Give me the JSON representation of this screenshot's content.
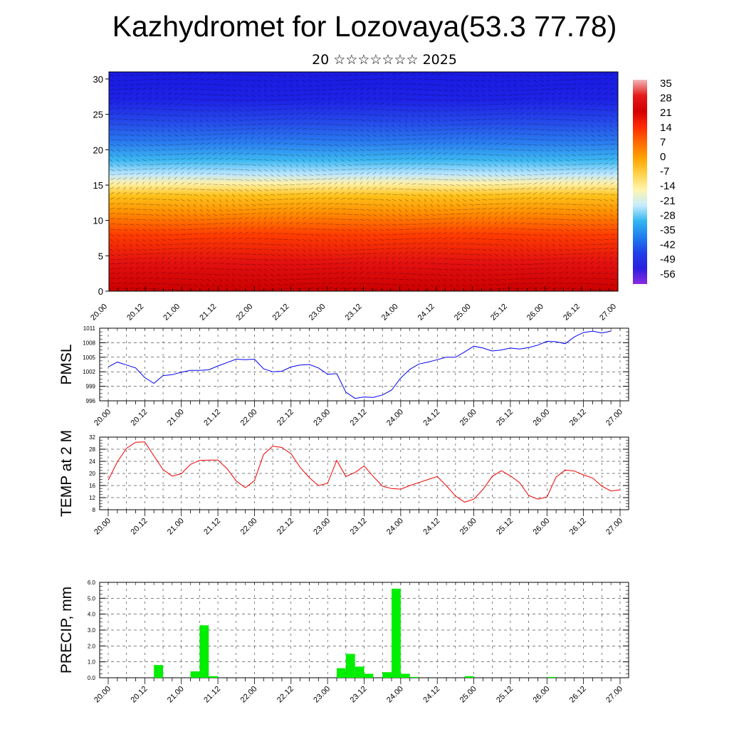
{
  "title": "Kazhydromet for Lozovaya(53.3 77.78)",
  "subtitle": "20 ☆☆☆☆☆☆☆ 2025",
  "colors": {
    "pmsl": "#0000ee",
    "temp": "#ee0000",
    "precip": "#00ee00"
  },
  "chart_data": [
    {
      "type": "heatmap",
      "y_ticks": [
        0,
        5,
        10,
        15,
        20,
        25,
        30
      ],
      "ylim": [
        0,
        31
      ],
      "x_ticks": [
        "20.00",
        "20.12",
        "21.00",
        "21.12",
        "22.00",
        "22.12",
        "23.00",
        "23.12",
        "24.00",
        "24.12",
        "25.00",
        "25.12",
        "26.00",
        "26.12",
        "27.00"
      ],
      "colorbar_labels": [
        "35",
        "28",
        "21",
        "14",
        "7",
        "0",
        "-7",
        "-14",
        "-21",
        "-28",
        "-35",
        "-42",
        "-49",
        "-56"
      ],
      "colorbar_colors": [
        "#f2b8b8",
        "#e41a1a",
        "#d40000",
        "#ff2a00",
        "#ff6a00",
        "#ffa400",
        "#ffd24a",
        "#fff5b0",
        "#c6ecff",
        "#33b4f0",
        "#1f7ef0",
        "#2040e8",
        "#2a1ee0",
        "#8a2be2"
      ],
      "vertical_color_profile": [
        {
          "level": 0,
          "color": "#cc0000"
        },
        {
          "level": 4,
          "color": "#e31010"
        },
        {
          "level": 8,
          "color": "#ff3c00"
        },
        {
          "level": 11,
          "color": "#ff8c00"
        },
        {
          "level": 13.5,
          "color": "#ffc21a"
        },
        {
          "level": 15.2,
          "color": "#fff1a6"
        },
        {
          "level": 16.5,
          "color": "#bfe8ff"
        },
        {
          "level": 18.5,
          "color": "#3cb8f2"
        },
        {
          "level": 21,
          "color": "#2a7cf0"
        },
        {
          "level": 24,
          "color": "#2548ea"
        },
        {
          "level": 27,
          "color": "#1e22e6"
        },
        {
          "level": 31,
          "color": "#1a1ae2"
        }
      ]
    },
    {
      "type": "line",
      "ylabel": "PMSL",
      "yticks": [
        996,
        999,
        1002,
        1005,
        1008,
        1011
      ],
      "ylim": [
        996,
        1011
      ],
      "x_ticks": [
        "20.00",
        "20.12",
        "21.00",
        "21.12",
        "22.00",
        "22.12",
        "23.00",
        "23.12",
        "24.00",
        "24.12",
        "25.00",
        "25.12",
        "26.00",
        "26.12",
        "27.00"
      ],
      "series": [
        {
          "x": [
            0,
            1,
            2,
            3,
            4,
            5,
            6,
            7,
            8,
            9,
            10,
            11,
            12,
            13,
            14,
            15,
            16,
            17,
            18,
            19,
            20,
            21,
            22,
            23,
            24,
            25,
            26,
            27,
            28,
            29,
            30,
            31,
            32,
            33,
            34,
            35,
            36,
            37,
            38,
            39,
            40,
            41,
            42,
            43,
            44,
            45,
            46,
            47,
            48,
            49,
            50,
            51,
            52,
            53,
            54,
            55,
            56
          ],
          "values": [
            1003.0,
            1004.0,
            1003.4,
            1002.8,
            1000.8,
            999.6,
            1001.2,
            1001.4,
            1001.9,
            1002.3,
            1002.3,
            1002.4,
            1003.2,
            1003.9,
            1004.6,
            1004.5,
            1004.6,
            1002.6,
            1002.0,
            1002.1,
            1003.0,
            1003.4,
            1003.5,
            1002.8,
            1001.5,
            1001.6,
            997.8,
            996.5,
            996.8,
            996.7,
            997.2,
            998.2,
            1000.7,
            1002.5,
            1003.6,
            1004.0,
            1004.5,
            1005.0,
            1005.0,
            1006.1,
            1007.3,
            1006.9,
            1006.3,
            1006.5,
            1006.9,
            1006.7,
            1007.0,
            1007.5,
            1008.3,
            1008.2,
            1007.8,
            1009.2,
            1010.1,
            1010.4,
            1010.0,
            1010.4,
            null
          ]
        }
      ]
    },
    {
      "type": "line",
      "ylabel": "TEMP at 2 M",
      "yticks": [
        8,
        12,
        16,
        20,
        24,
        28,
        32
      ],
      "ylim": [
        8,
        32
      ],
      "x_ticks": [
        "20.00",
        "20.12",
        "21.00",
        "21.12",
        "22.00",
        "22.12",
        "23.00",
        "23.12",
        "24.00",
        "24.12",
        "25.00",
        "25.12",
        "26.00",
        "26.12",
        "27.00"
      ],
      "series": [
        {
          "x": [
            0,
            1,
            2,
            3,
            4,
            5,
            6,
            7,
            8,
            9,
            10,
            11,
            12,
            13,
            14,
            15,
            16,
            17,
            18,
            19,
            20,
            21,
            22,
            23,
            24,
            25,
            26,
            27,
            28,
            29,
            30,
            31,
            32,
            33,
            34,
            35,
            36,
            37,
            38,
            39,
            40,
            41,
            42,
            43,
            44,
            45,
            46,
            47,
            48,
            49,
            50,
            51,
            52,
            53,
            54,
            55,
            56
          ],
          "values": [
            17.8,
            23.8,
            28.3,
            30.3,
            30.4,
            25.8,
            21.3,
            19.1,
            19.9,
            23.0,
            24.3,
            24.4,
            24.4,
            21.6,
            17.5,
            15.3,
            17.6,
            26.3,
            29.0,
            28.6,
            26.5,
            22.0,
            18.6,
            16.0,
            16.7,
            24.3,
            19.0,
            20.3,
            22.5,
            19.0,
            15.8,
            15.0,
            14.8,
            16.0,
            17.0,
            18.0,
            19.0,
            15.9,
            12.5,
            10.5,
            11.5,
            14.7,
            19.0,
            20.9,
            19.2,
            17.0,
            12.7,
            11.5,
            12.2,
            18.8,
            21.1,
            20.8,
            19.5,
            18.5,
            15.8,
            14.2,
            14.6
          ]
        }
      ]
    },
    {
      "type": "bar",
      "ylabel": "PRECIP, mm",
      "yticks": [
        "0.0",
        "1.0",
        "2.0",
        "3.0",
        "4.0",
        "5.0",
        "6.0"
      ],
      "ylim": [
        0,
        6
      ],
      "x_ticks": [
        "20.00",
        "20.12",
        "21.00",
        "21.12",
        "22.00",
        "22.12",
        "23.00",
        "23.12",
        "24.00",
        "24.12",
        "25.00",
        "25.12",
        "26.00",
        "26.12",
        "27.00"
      ],
      "bars": [
        {
          "x": 5.5,
          "value": 0.8
        },
        {
          "x": 9.5,
          "value": 0.4
        },
        {
          "x": 10.5,
          "value": 3.3
        },
        {
          "x": 11.5,
          "value": 0.1
        },
        {
          "x": 25.5,
          "value": 0.6
        },
        {
          "x": 26.5,
          "value": 1.5
        },
        {
          "x": 27.5,
          "value": 0.7
        },
        {
          "x": 28.5,
          "value": 0.25
        },
        {
          "x": 30.5,
          "value": 0.35
        },
        {
          "x": 31.5,
          "value": 5.6
        },
        {
          "x": 32.5,
          "value": 0.25
        },
        {
          "x": 33.5,
          "value": 0.05
        },
        {
          "x": 39.5,
          "value": 0.1
        },
        {
          "x": 48.5,
          "value": 0.05
        }
      ]
    }
  ]
}
